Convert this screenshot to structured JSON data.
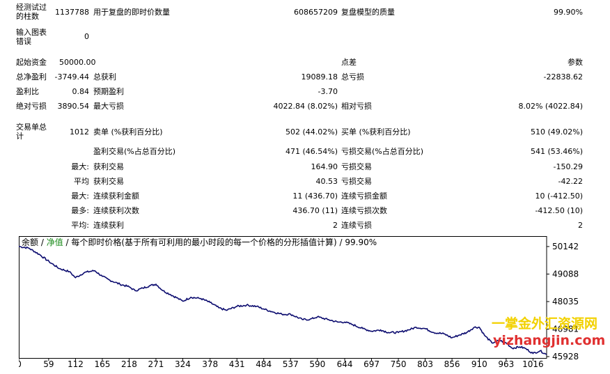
{
  "report": {
    "bars_tested": {
      "label": "经测试过的柱数",
      "value": "1137788"
    },
    "ticks_modelled": {
      "label": "用于复盘的即时价数量",
      "value": "608657209"
    },
    "modelling_quality": {
      "label": "复盘模型的质量",
      "value": "99.90%"
    },
    "chart_errors": {
      "label": "输入图表错误",
      "value": "0"
    },
    "initial_deposit": {
      "label": "起始资金",
      "value": "50000.00"
    },
    "spread": {
      "label": "点差",
      "value": "参数"
    },
    "net_profit": {
      "label": "总净盈利",
      "value": "-3749.44"
    },
    "gross_profit": {
      "label": "总获利",
      "value": "19089.18"
    },
    "gross_loss": {
      "label": "总亏损",
      "value": "-22838.62"
    },
    "profit_factor": {
      "label": "盈利比",
      "value": "0.84"
    },
    "expected_payoff": {
      "label": "预期盈利",
      "value": "-3.70"
    },
    "absolute_drawdown": {
      "label": "绝对亏损",
      "value": "3890.54"
    },
    "maximal_drawdown": {
      "label": "最大亏损",
      "value": "4022.84 (8.02%)"
    },
    "relative_drawdown": {
      "label": "相对亏损",
      "value": "8.02% (4022.84)"
    },
    "total_trades": {
      "label": "交易单总计",
      "value": "1012"
    },
    "short_positions": {
      "label": "卖单 (%获利百分比)",
      "value": "502 (44.02%)"
    },
    "long_positions": {
      "label": "买单 (%获利百分比)",
      "value": "510 (49.02%)"
    },
    "profit_trades": {
      "label": "盈利交易(%占总百分比)",
      "value": "471 (46.54%)"
    },
    "loss_trades": {
      "label": "亏损交易(%占总百分比)",
      "value": "541 (53.46%)"
    },
    "largest": {
      "prefix": "最大:",
      "profit_label": "获利交易",
      "profit_value": "164.90",
      "loss_label": "亏损交易",
      "loss_value": "-150.29"
    },
    "average": {
      "prefix": "平均",
      "profit_label": "获利交易",
      "profit_value": "40.53",
      "loss_label": "亏损交易",
      "loss_value": "-42.22"
    },
    "maximum": {
      "prefix": "最大:",
      "wins_label": "连续获利金额",
      "wins_value": "11 (436.70)",
      "losses_label": "连续亏损金额",
      "losses_value": "10 (-412.50)"
    },
    "maximal": {
      "prefix": "最多:",
      "wins_label": "连续获利次数",
      "wins_value": "436.70 (11)",
      "losses_label": "连续亏损次数",
      "losses_value": "-412.50 (10)"
    },
    "avg_consec": {
      "prefix": "平均:",
      "wins_label": "连续获利",
      "wins_value": "2",
      "losses_label": "连续亏损",
      "losses_value": "2"
    }
  },
  "legend": {
    "balance": "余额",
    "sep1": " / ",
    "equity": "净值",
    "rest": " / 每个即时价格(基于所有可利用的最小时段的每一个价格的分形插值计算) / 99.90%"
  },
  "colors": {
    "line": "#0a0a6e",
    "equity_label": "#1a8a1a",
    "grid": "#b0b0b0"
  },
  "chart_data": {
    "type": "line",
    "x_ticks": [
      "0",
      "59",
      "112",
      "165",
      "218",
      "271",
      "324",
      "378",
      "431",
      "484",
      "537",
      "590",
      "644",
      "697",
      "750",
      "803",
      "856",
      "910",
      "963",
      "1016"
    ],
    "y_ticks": [
      "50142",
      "49088",
      "48035",
      "46981",
      "45928"
    ],
    "ylim": [
      45928,
      50142
    ],
    "xlim": [
      0,
      1043
    ],
    "series": [
      {
        "x": [
          0,
          20,
          40,
          60,
          80,
          100,
          112,
          130,
          150,
          165,
          180,
          200,
          218,
          230,
          245,
          260,
          271,
          285,
          300,
          315,
          324,
          340,
          360,
          378,
          395,
          410,
          431,
          450,
          470,
          484,
          500,
          520,
          537,
          560,
          575,
          590,
          610,
          630,
          644,
          660,
          680,
          697,
          715,
          730,
          750,
          770,
          785,
          803,
          820,
          840,
          856,
          870,
          885,
          900,
          910,
          920,
          935,
          950,
          963,
          975,
          990,
          1000,
          1016,
          1030,
          1043
        ],
        "values": [
          50150,
          50080,
          49850,
          49560,
          49300,
          49180,
          48950,
          49150,
          49220,
          49000,
          48850,
          48700,
          48600,
          48450,
          48550,
          48650,
          48700,
          48450,
          48300,
          48150,
          48050,
          48200,
          48150,
          48000,
          47800,
          47700,
          47850,
          47900,
          47850,
          47750,
          47650,
          47550,
          47550,
          47350,
          47350,
          47450,
          47350,
          47250,
          47250,
          47150,
          47000,
          46900,
          46950,
          46850,
          46850,
          46950,
          47050,
          47000,
          46850,
          46800,
          46650,
          46750,
          46850,
          47050,
          47050,
          46750,
          46450,
          46550,
          46450,
          46250,
          46300,
          46250,
          46050,
          46150,
          46000
        ]
      }
    ]
  }
}
